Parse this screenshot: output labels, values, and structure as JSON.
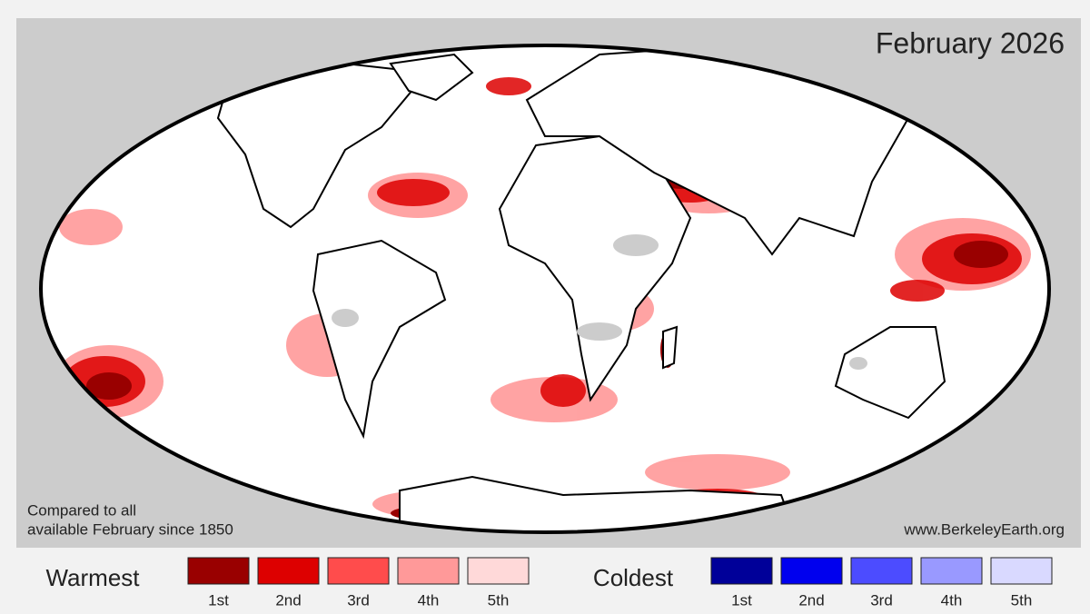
{
  "title": "February 2026",
  "note": [
    "Compared to all",
    "available February since 1850"
  ],
  "source": "www.BerkeleyEarth.org",
  "legend": {
    "warm": {
      "label": "Warmest",
      "items": [
        {
          "label": "1st",
          "color": "#990000"
        },
        {
          "label": "2nd",
          "color": "#dd0000"
        },
        {
          "label": "3rd",
          "color": "#ff4c4c"
        },
        {
          "label": "4th",
          "color": "#ff9999"
        },
        {
          "label": "5th",
          "color": "#ffd9d9"
        }
      ]
    },
    "cold": {
      "label": "Coldest",
      "items": [
        {
          "label": "1st",
          "color": "#000099"
        },
        {
          "label": "2nd",
          "color": "#0000ee"
        },
        {
          "label": "3rd",
          "color": "#4c4cff"
        },
        {
          "label": "4th",
          "color": "#9999ff"
        },
        {
          "label": "5th",
          "color": "#d9d9ff"
        }
      ]
    }
  }
}
